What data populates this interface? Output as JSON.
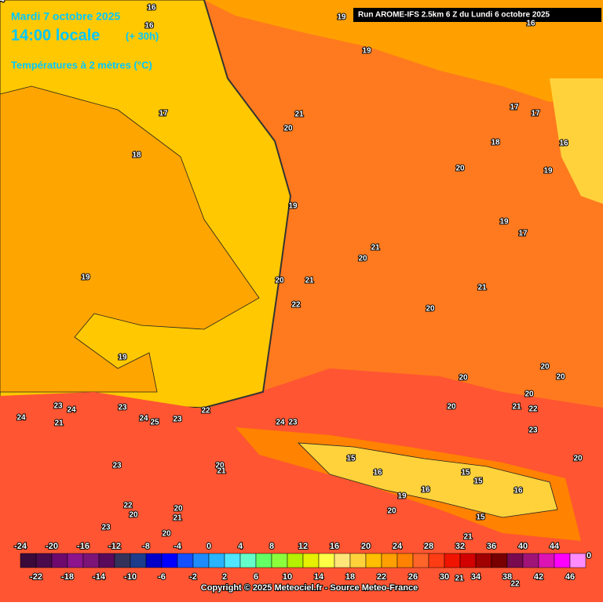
{
  "header": {
    "date": "Mardi 7 octobre 2025",
    "time": "14:00 locale",
    "offset": "(+ 30h)",
    "subtitle": "Températures à 2 mètres (°C)",
    "run": "Run AROME-IFS 2.5km 6 Z du Lundi 6 octobre 2025"
  },
  "contour_labels": [
    "16",
    "19",
    "16",
    "16",
    "19",
    "17",
    "21",
    "20",
    "17",
    "17",
    "18",
    "16",
    "18",
    "20",
    "19",
    "19",
    "19",
    "21",
    "20",
    "17",
    "19",
    "20",
    "21",
    "21",
    "22",
    "20",
    "19",
    "20",
    "20",
    "20",
    "20",
    "21",
    "22",
    "20",
    "23",
    "24",
    "23",
    "22",
    "24",
    "21",
    "24",
    "25",
    "23",
    "24",
    "23",
    "23",
    "20",
    "15",
    "23",
    "20",
    "21",
    "16",
    "15",
    "15",
    "16",
    "16",
    "19",
    "20",
    "22",
    "20",
    "20",
    "21",
    "23",
    "20",
    "15",
    "21",
    "21",
    "22",
    "24"
  ],
  "colorbar": {
    "colors": [
      "#3a0a3a",
      "#4b0a4b",
      "#6e0a6e",
      "#8c148c",
      "#7d1478",
      "#5a0a5a",
      "#32325a",
      "#1e3c8c",
      "#0000c8",
      "#0000ff",
      "#1450ff",
      "#1e8cff",
      "#28b4ff",
      "#50e6ff",
      "#64ffc8",
      "#64ff64",
      "#8cff3c",
      "#b4f000",
      "#e6f000",
      "#ffff46",
      "#ffe678",
      "#ffd23c",
      "#ffbe00",
      "#ffa000",
      "#ff8200",
      "#ff6428",
      "#ff3c14",
      "#f01400",
      "#d20000",
      "#a00000",
      "#780000",
      "#780a50",
      "#a01478",
      "#dc14b4",
      "#ff00ff",
      "#ff8cff"
    ],
    "top_labels": [
      "-24",
      "-20",
      "-16",
      "-12",
      "-8",
      "-4",
      "0",
      "4",
      "8",
      "12",
      "16",
      "20",
      "24",
      "28",
      "32",
      "36",
      "40",
      "44"
    ],
    "bottom_labels": [
      "-22",
      "-18",
      "-14",
      "-10",
      "-6",
      "-2",
      "2",
      "6",
      "10",
      "14",
      "18",
      "22",
      "26",
      "30",
      "34",
      "38",
      "42",
      "46"
    ],
    "end_label": "0"
  },
  "copyright": "Copyright © 2025 Meteociel.fr - Source Meteo-France"
}
